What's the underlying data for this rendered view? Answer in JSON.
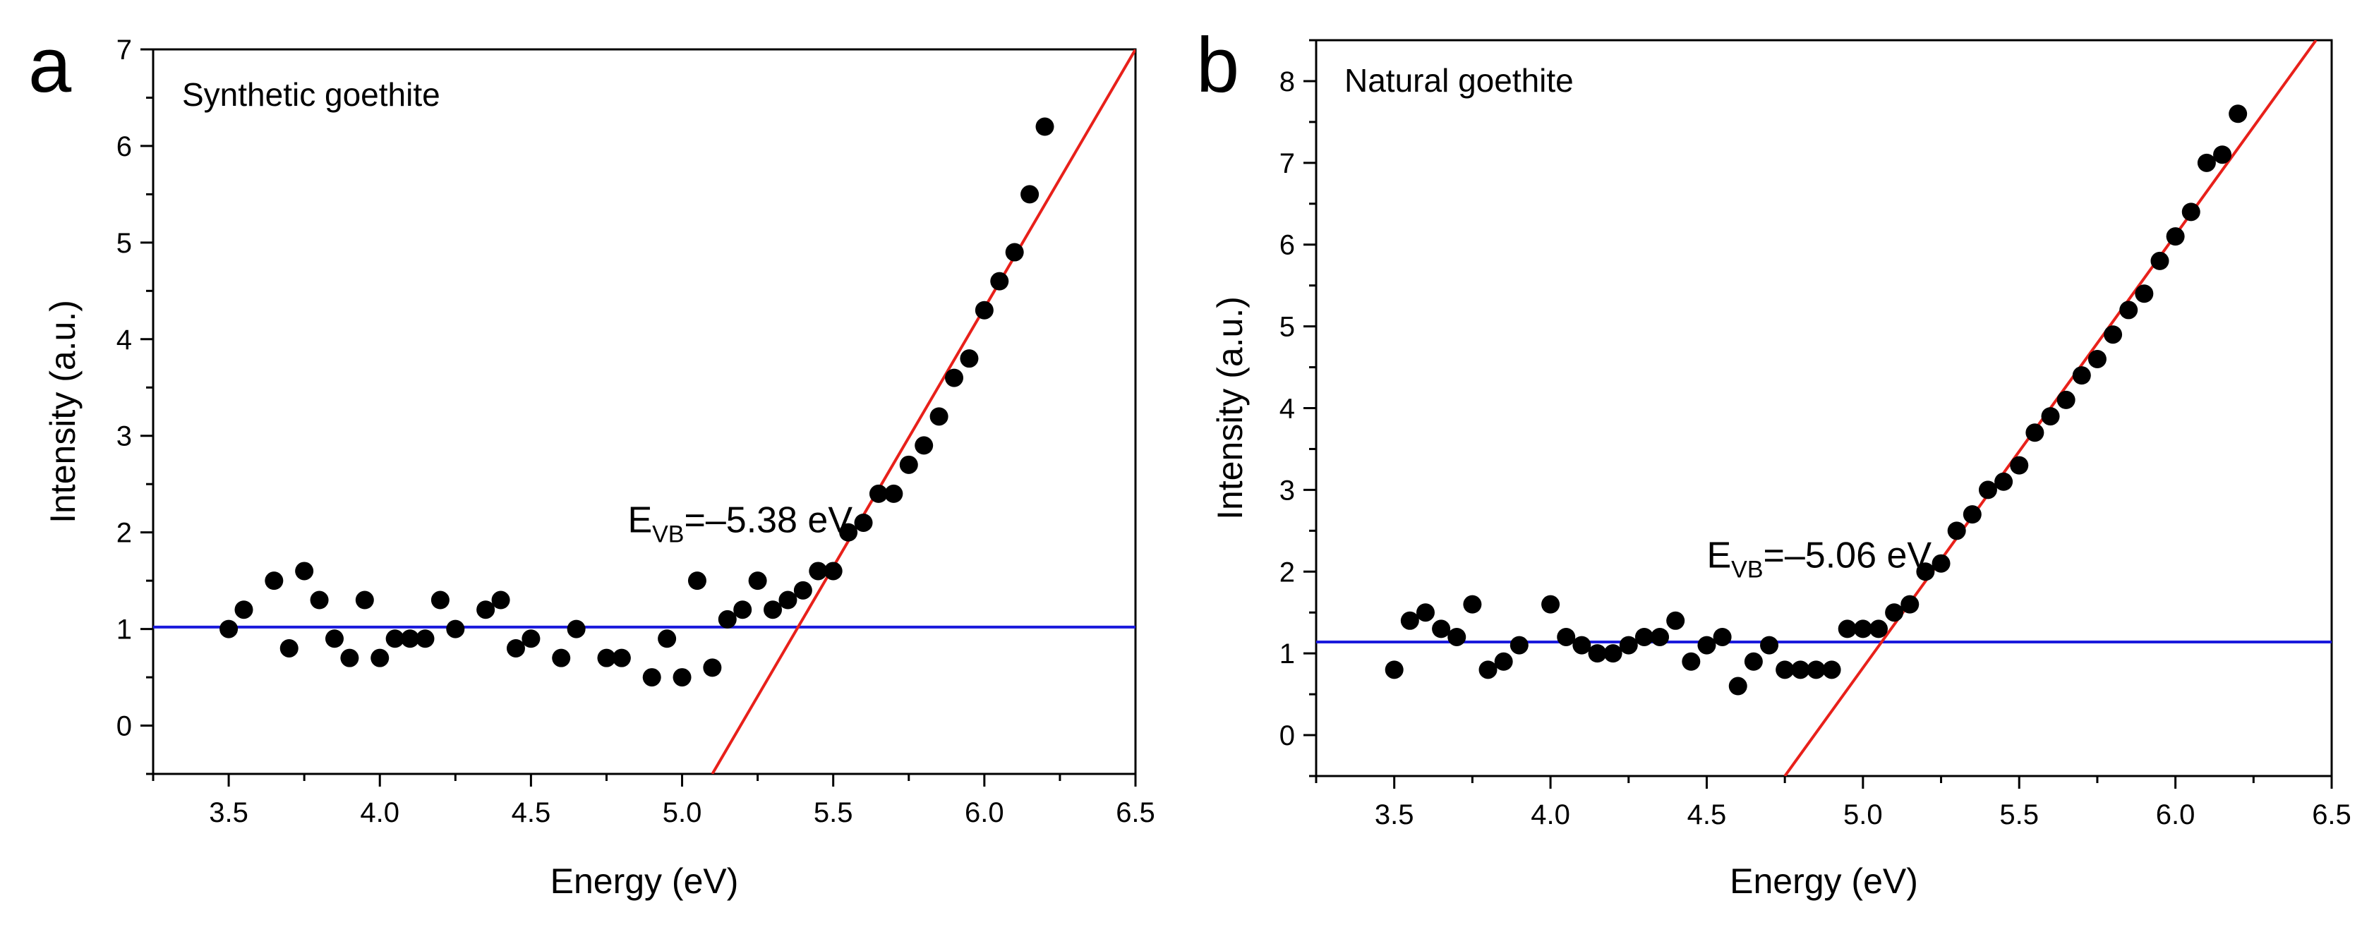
{
  "colors": {
    "axis": "#000000",
    "points": "#000000",
    "baseline": "#1a1adc",
    "fit": "#e8201a"
  },
  "chart_data": [
    {
      "type": "scatter",
      "panel_letter": "a",
      "title": "Synthetic goethite",
      "xlabel": "Energy (eV)",
      "ylabel": "Intensity (a.u.)",
      "xlim": [
        3.25,
        6.5
      ],
      "ylim": [
        -0.5,
        7
      ],
      "xticks": [
        3.5,
        4.0,
        4.5,
        5.0,
        5.5,
        6.0,
        6.5
      ],
      "xtick_labels": [
        "3.5",
        "4.0",
        "4.5",
        "5.0",
        "5.5",
        "6.0",
        "6.5"
      ],
      "yticks": [
        0,
        1,
        2,
        3,
        4,
        5,
        6,
        7
      ],
      "ytick_labels": [
        "0",
        "1",
        "2",
        "3",
        "4",
        "5",
        "6",
        "7"
      ],
      "grid": false,
      "annotation": {
        "prefix": "E",
        "subscript": "VB",
        "value": "=–5.38 eV",
        "x": 4.82,
        "y": 2.0
      },
      "baseline": {
        "y": 1.02
      },
      "fit_line": {
        "x": [
          5.1,
          6.5
        ],
        "y": [
          -0.5,
          7.0
        ]
      },
      "series": [
        {
          "name": "data",
          "x": [
            3.5,
            3.55,
            3.65,
            3.7,
            3.75,
            3.8,
            3.85,
            3.9,
            3.95,
            4.0,
            4.05,
            4.1,
            4.15,
            4.2,
            4.25,
            4.35,
            4.4,
            4.45,
            4.5,
            4.6,
            4.65,
            4.75,
            4.8,
            4.9,
            4.95,
            5.0,
            5.05,
            5.1,
            5.15,
            5.2,
            5.25,
            5.3,
            5.35,
            5.4,
            5.45,
            5.5,
            5.55,
            5.6,
            5.65,
            5.7,
            5.75,
            5.8,
            5.85,
            5.9,
            5.95,
            6.0,
            6.05,
            6.1,
            6.15,
            6.2
          ],
          "y": [
            1.0,
            1.2,
            1.5,
            0.8,
            1.6,
            1.3,
            0.9,
            0.7,
            1.3,
            0.7,
            0.9,
            0.9,
            0.9,
            1.3,
            1.0,
            1.2,
            1.3,
            0.8,
            0.9,
            0.7,
            1.0,
            0.7,
            0.7,
            0.5,
            0.9,
            0.5,
            1.5,
            0.6,
            1.1,
            1.2,
            1.5,
            1.2,
            1.3,
            1.4,
            1.6,
            1.6,
            2.0,
            2.1,
            2.4,
            2.4,
            2.7,
            2.9,
            3.2,
            3.6,
            3.8,
            4.3,
            4.6,
            4.9,
            5.5,
            6.2
          ]
        }
      ]
    },
    {
      "type": "scatter",
      "panel_letter": "b",
      "title": "Natural goethite",
      "xlabel": "Energy (eV)",
      "ylabel": "Intensity (a.u.)",
      "xlim": [
        3.25,
        6.5
      ],
      "ylim": [
        -0.5,
        8.5
      ],
      "xticks": [
        3.5,
        4.0,
        4.5,
        5.0,
        5.5,
        6.0,
        6.5
      ],
      "xtick_labels": [
        "3.5",
        "4.0",
        "4.5",
        "5.0",
        "5.5",
        "6.0",
        "6.5"
      ],
      "yticks": [
        0,
        1,
        2,
        3,
        4,
        5,
        6,
        7,
        8
      ],
      "ytick_labels": [
        "0",
        "1",
        "2",
        "3",
        "4",
        "5",
        "6",
        "7",
        "8"
      ],
      "grid": false,
      "annotation": {
        "prefix": "E",
        "subscript": "VB",
        "value": "=–5.06 eV",
        "x": 4.5,
        "y": 2.05
      },
      "baseline": {
        "y": 1.14
      },
      "fit_line": {
        "x": [
          4.75,
          6.45
        ],
        "y": [
          -0.5,
          8.5
        ]
      },
      "series": [
        {
          "name": "data",
          "x": [
            3.5,
            3.55,
            3.6,
            3.65,
            3.7,
            3.75,
            3.8,
            3.85,
            3.9,
            4.0,
            4.05,
            4.1,
            4.15,
            4.2,
            4.25,
            4.3,
            4.35,
            4.4,
            4.45,
            4.5,
            4.55,
            4.6,
            4.65,
            4.7,
            4.75,
            4.8,
            4.85,
            4.9,
            4.95,
            5.0,
            5.05,
            5.1,
            5.15,
            5.2,
            5.25,
            5.3,
            5.35,
            5.4,
            5.45,
            5.5,
            5.55,
            5.6,
            5.65,
            5.7,
            5.75,
            5.8,
            5.85,
            5.9,
            5.95,
            6.0,
            6.05,
            6.1,
            6.15,
            6.2
          ],
          "y": [
            0.8,
            1.4,
            1.5,
            1.3,
            1.2,
            1.6,
            0.8,
            0.9,
            1.1,
            1.6,
            1.2,
            1.1,
            1.0,
            1.0,
            1.1,
            1.2,
            1.2,
            1.4,
            0.9,
            1.1,
            1.2,
            0.6,
            0.9,
            1.1,
            0.8,
            0.8,
            0.8,
            0.8,
            1.3,
            1.3,
            1.3,
            1.5,
            1.6,
            2.0,
            2.1,
            2.5,
            2.7,
            3.0,
            3.1,
            3.3,
            3.7,
            3.9,
            4.1,
            4.4,
            4.6,
            4.9,
            5.2,
            5.4,
            5.8,
            6.1,
            6.4,
            7.0,
            7.1,
            7.6
          ]
        }
      ]
    }
  ]
}
